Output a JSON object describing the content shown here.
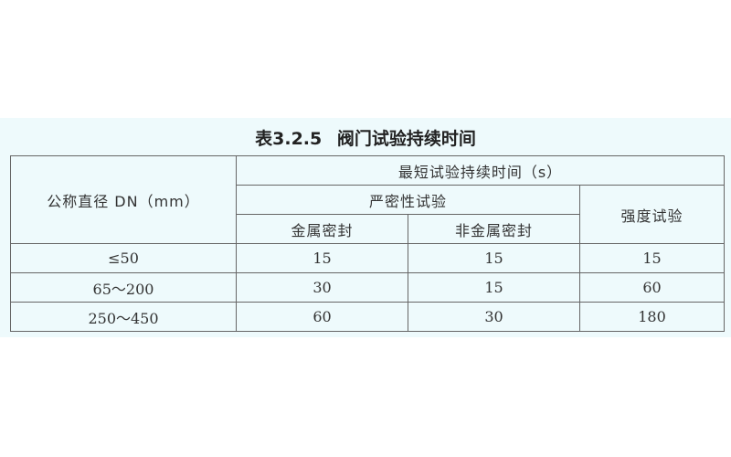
{
  "title": "表3.2.5 阀门试验持续时间",
  "headers": {
    "dn": "公称直径 DN（mm）",
    "min_time": "最短试验持续时间（s）",
    "tightness": "严密性试验",
    "metal_seal": "金属密封",
    "nonmetal_seal": "非金属密封",
    "strength": "强度试验"
  },
  "rows": [
    {
      "dn": "≤50",
      "metal": "15",
      "nonmetal": "15",
      "strength": "15"
    },
    {
      "dn": "65～200",
      "metal": "30",
      "nonmetal": "15",
      "strength": "60"
    },
    {
      "dn": "250～450",
      "metal": "60",
      "nonmetal": "30",
      "strength": "180"
    }
  ],
  "colors": {
    "background_band": "#eefafc",
    "border": "#666666"
  }
}
